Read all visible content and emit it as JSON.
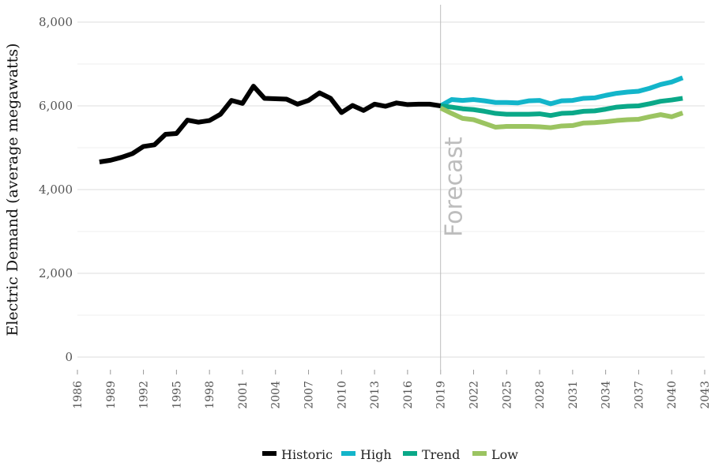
{
  "chart_data": {
    "type": "line",
    "title": "",
    "xlabel": "",
    "ylabel": "Electric Demand (average megawatts)",
    "xlim": [
      1986,
      2043
    ],
    "ylim": [
      0,
      8000
    ],
    "x_ticks": [
      1986,
      1989,
      1992,
      1995,
      1998,
      2001,
      2004,
      2007,
      2010,
      2013,
      2016,
      2019,
      2022,
      2025,
      2028,
      2031,
      2034,
      2037,
      2040,
      2043
    ],
    "y_ticks": [
      0,
      2000,
      4000,
      6000,
      8000
    ],
    "y_tick_labels": [
      "0",
      "2,000",
      "4,000",
      "6,000",
      "8,000"
    ],
    "grid": true,
    "legend_position": "bottom",
    "annotation": {
      "text": "Forecast",
      "x": 2019
    },
    "series": [
      {
        "name": "Historic",
        "color": "#000000",
        "x": [
          1988,
          1989,
          1990,
          1991,
          1992,
          1993,
          1994,
          1995,
          1996,
          1997,
          1998,
          1999,
          2000,
          2001,
          2002,
          2003,
          2004,
          2005,
          2006,
          2007,
          2008,
          2009,
          2010,
          2011,
          2012,
          2013,
          2014,
          2015,
          2016,
          2017,
          2018,
          2019
        ],
        "values": [
          4660,
          4700,
          4770,
          4860,
          5030,
          5070,
          5320,
          5340,
          5660,
          5610,
          5650,
          5800,
          6130,
          6060,
          6470,
          6180,
          6170,
          6160,
          6040,
          6130,
          6310,
          6180,
          5840,
          6010,
          5890,
          6040,
          5990,
          6070,
          6030,
          6040,
          6040,
          6000
        ]
      },
      {
        "name": "High",
        "color": "#13b5ca",
        "x": [
          2019,
          2020,
          2021,
          2022,
          2023,
          2024,
          2025,
          2026,
          2027,
          2028,
          2029,
          2030,
          2031,
          2032,
          2033,
          2034,
          2035,
          2036,
          2037,
          2038,
          2039,
          2040,
          2041
        ],
        "values": [
          6000,
          6150,
          6130,
          6150,
          6120,
          6080,
          6080,
          6070,
          6120,
          6130,
          6050,
          6120,
          6130,
          6180,
          6190,
          6250,
          6300,
          6330,
          6350,
          6420,
          6510,
          6570,
          6670
        ]
      },
      {
        "name": "Trend",
        "color": "#0aa888",
        "x": [
          2019,
          2020,
          2021,
          2022,
          2023,
          2024,
          2025,
          2026,
          2027,
          2028,
          2029,
          2030,
          2031,
          2032,
          2033,
          2034,
          2035,
          2036,
          2037,
          2038,
          2039,
          2040,
          2041
        ],
        "values": [
          6000,
          5970,
          5930,
          5910,
          5870,
          5820,
          5800,
          5800,
          5800,
          5810,
          5770,
          5820,
          5830,
          5870,
          5880,
          5920,
          5970,
          5990,
          6000,
          6050,
          6110,
          6140,
          6180
        ]
      },
      {
        "name": "Low",
        "color": "#9bc461",
        "x": [
          2019,
          2020,
          2021,
          2022,
          2023,
          2024,
          2025,
          2026,
          2027,
          2028,
          2029,
          2030,
          2031,
          2032,
          2033,
          2034,
          2035,
          2036,
          2037,
          2038,
          2039,
          2040,
          2041
        ],
        "values": [
          5950,
          5820,
          5700,
          5670,
          5580,
          5490,
          5510,
          5510,
          5510,
          5500,
          5480,
          5520,
          5530,
          5590,
          5600,
          5620,
          5650,
          5670,
          5680,
          5740,
          5790,
          5740,
          5830
        ]
      }
    ]
  }
}
